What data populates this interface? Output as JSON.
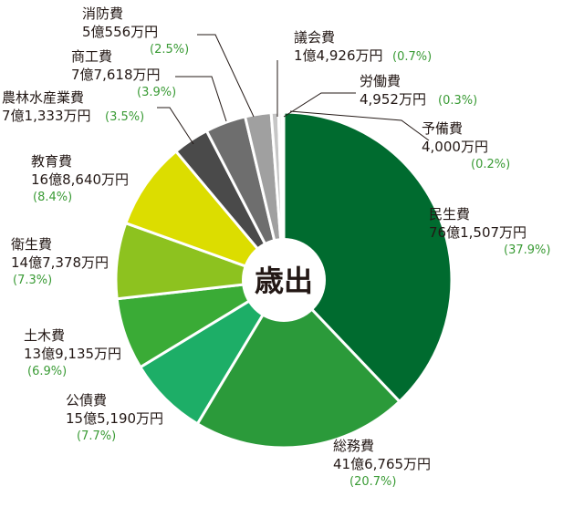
{
  "chart_data": {
    "type": "pie",
    "center_label": "歳出",
    "slices": [
      {
        "name": "民生費",
        "amount": "76億1,507万円",
        "pct_label": "(37.9%)",
        "value": 37.9,
        "color": "#006b2f"
      },
      {
        "name": "総務費",
        "amount": "41億6,765万円",
        "pct_label": "(20.7%)",
        "value": 20.7,
        "color": "#2b9a3a"
      },
      {
        "name": "公債費",
        "amount": "15億5,190万円",
        "pct_label": "(7.7%)",
        "value": 7.7,
        "color": "#1dae67"
      },
      {
        "name": "土木費",
        "amount": "13億9,135万円",
        "pct_label": "(6.9%)",
        "value": 6.9,
        "color": "#3aab36"
      },
      {
        "name": "衛生費",
        "amount": "14億7,378万円",
        "pct_label": "(7.3%)",
        "value": 7.3,
        "color": "#8dc21f"
      },
      {
        "name": "教育費",
        "amount": "16億8,640万円",
        "pct_label": "(8.4%)",
        "value": 8.4,
        "color": "#dcdd00"
      },
      {
        "name": "農林水産業費",
        "amount": "7億1,333万円",
        "pct_label": "(3.5%)",
        "value": 3.5,
        "color": "#4a4a4a"
      },
      {
        "name": "商工費",
        "amount": "7億7,618万円",
        "pct_label": "(3.9%)",
        "value": 3.9,
        "color": "#6e6e6e"
      },
      {
        "name": "消防費",
        "amount": "5億556万円",
        "pct_label": "(2.5%)",
        "value": 2.5,
        "color": "#a0a0a0"
      },
      {
        "name": "議会費",
        "amount": "1億4,926万円",
        "pct_label": "(0.7%)",
        "value": 0.7,
        "color": "#c6c6c6"
      },
      {
        "name": "労働費",
        "amount": "4,952万円",
        "pct_label": "(0.3%)",
        "value": 0.3,
        "color": "#dadada"
      },
      {
        "name": "予備費",
        "amount": "4,000万円",
        "pct_label": "(0.2%)",
        "value": 0.2,
        "color": "#ececec"
      }
    ]
  }
}
